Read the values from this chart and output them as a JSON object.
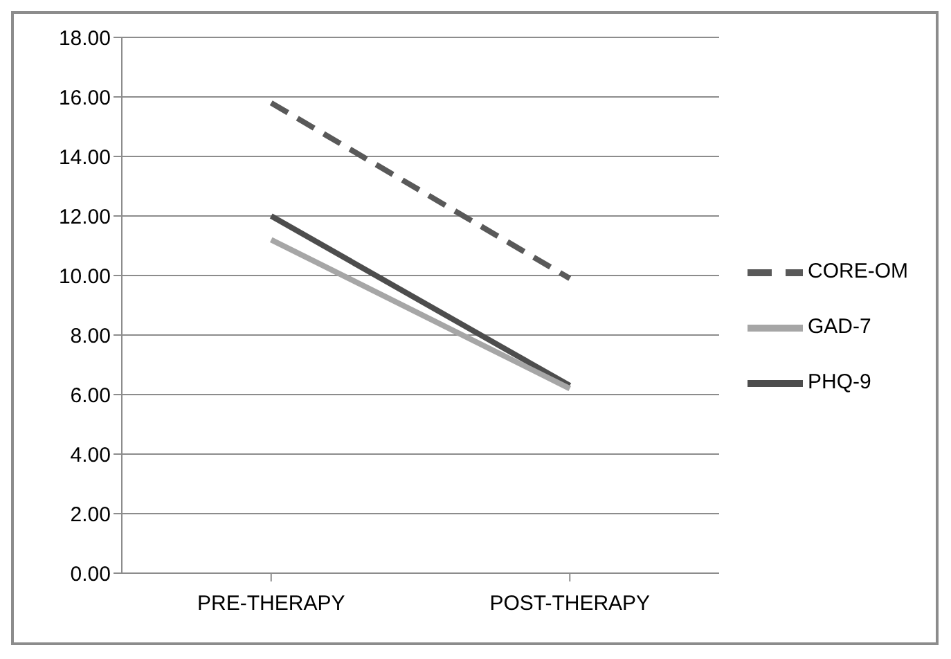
{
  "chart_data": {
    "type": "line",
    "categories": [
      "PRE-THERAPY",
      "POST-THERAPY"
    ],
    "series": [
      {
        "name": "CORE-OM",
        "color": "#595959",
        "values": [
          15.8,
          9.9
        ],
        "line_style": "dashed"
      },
      {
        "name": "PHQ-9",
        "color": "#4d4d4d",
        "values": [
          12.0,
          6.3
        ],
        "line_style": "solid"
      },
      {
        "name": "GAD-7",
        "color": "#a6a6a6",
        "values": [
          11.2,
          6.2
        ],
        "line_style": "solid"
      }
    ],
    "ylim": [
      0,
      18
    ],
    "yticks": [
      {
        "value": 0,
        "label": "0.00"
      },
      {
        "value": 2,
        "label": "2.00"
      },
      {
        "value": 4,
        "label": "4.00"
      },
      {
        "value": 6,
        "label": "6.00"
      },
      {
        "value": 8,
        "label": "8.00"
      },
      {
        "value": 10,
        "label": "10.00"
      },
      {
        "value": 12,
        "label": "12.00"
      },
      {
        "value": 14,
        "label": "14.00"
      },
      {
        "value": 16,
        "label": "16.00"
      },
      {
        "value": 18,
        "label": "18.00"
      }
    ],
    "grid": "y",
    "legend": "right",
    "marker": "none"
  }
}
